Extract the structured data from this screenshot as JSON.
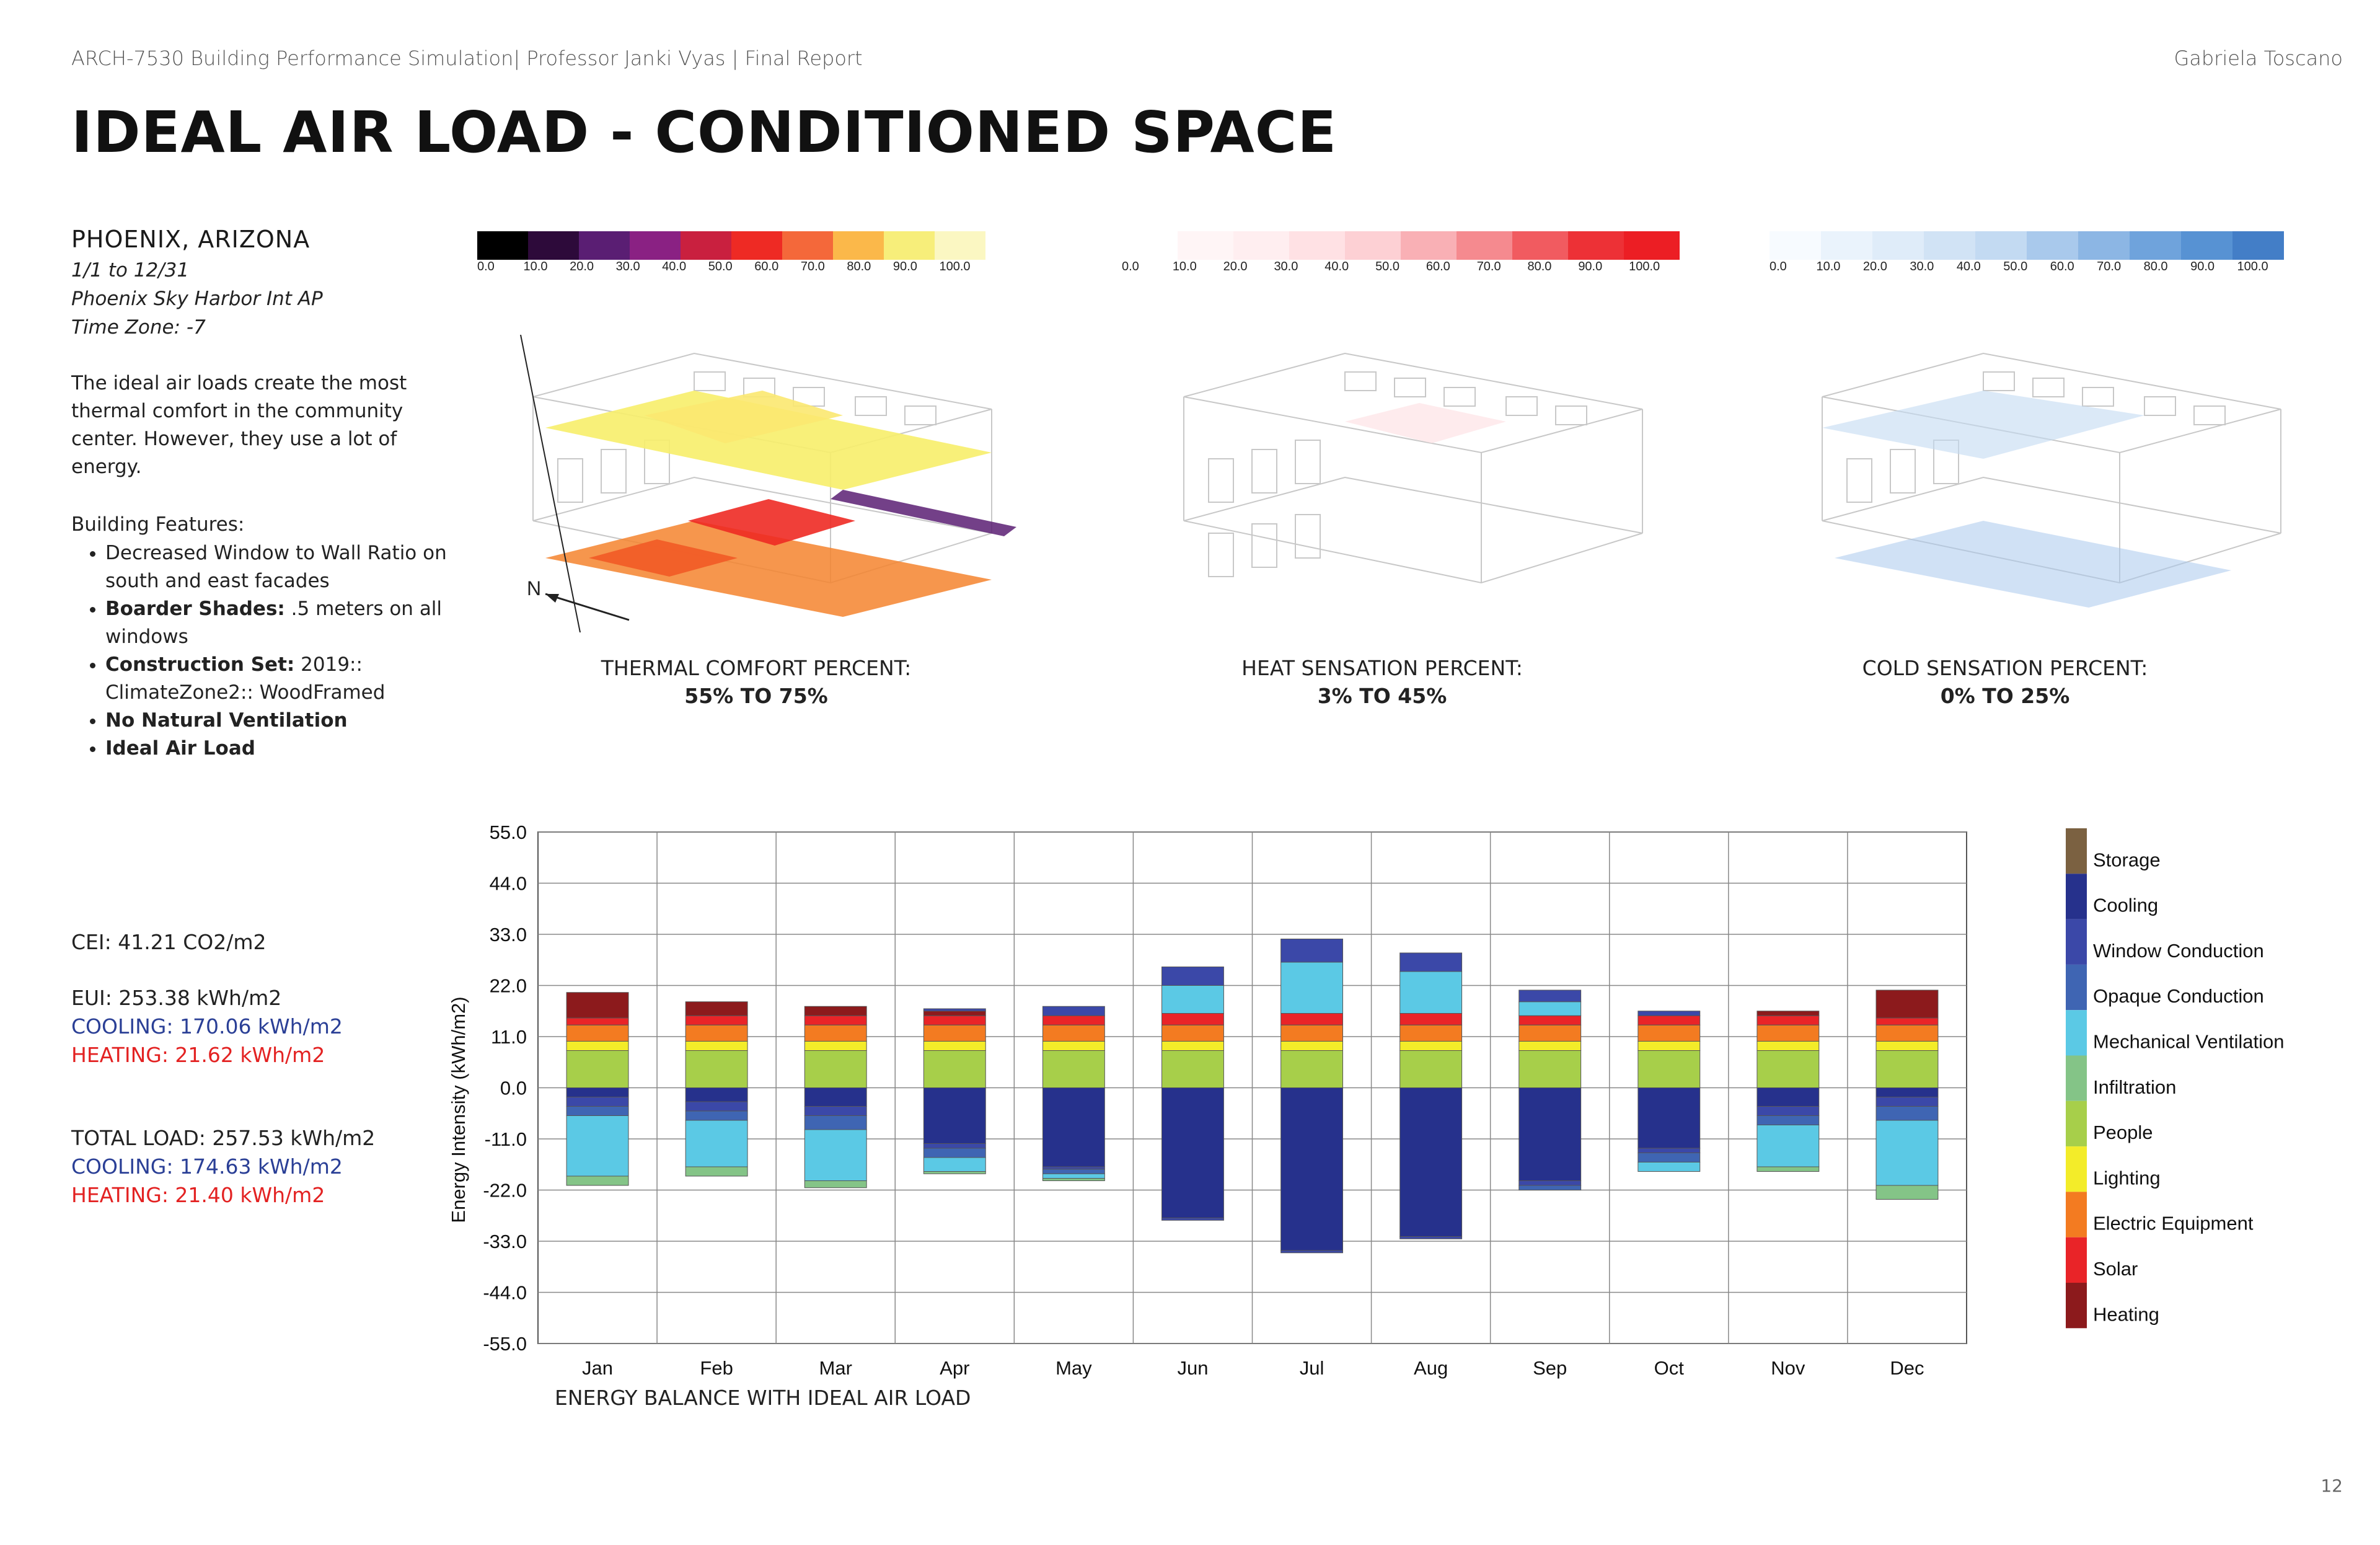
{
  "header": {
    "course": "ARCH-7530 Building Performance Simulation| Professor Janki Vyas | Final Report",
    "author": "Gabriela Toscano"
  },
  "title": "IDEAL AIR LOAD - CONDITIONED SPACE",
  "location": {
    "name": "PHOENIX, ARIZONA",
    "dates": "1/1 to 12/31",
    "station": "Phoenix Sky Harbor Int AP",
    "timezone": "Time Zone: -7"
  },
  "description": "The ideal air loads create the most thermal comfort in the community center. However, they use a lot of energy.",
  "features": {
    "heading": "Building Features:",
    "items": [
      {
        "bold": "",
        "text": "Decreased Window to Wall Ratio on south and east facades"
      },
      {
        "bold": "Boarder Shades:",
        "text": " .5 meters on all windows"
      },
      {
        "bold": "Construction Set:",
        "text": " 2019:: ClimateZone2:: WoodFramed"
      },
      {
        "bold": "No Natural Ventilation",
        "text": ""
      },
      {
        "bold": "Ideal Air Load",
        "text": ""
      }
    ]
  },
  "stats": {
    "cei": "CEI: 41.21 CO2/m2",
    "eui": "EUI: 253.38 kWh/m2",
    "eui_cooling": "COOLING: 170.06 kWh/m2",
    "eui_heating": "HEATING: 21.62 kWh/m2",
    "total": "TOTAL LOAD: 257.53 kWh/m2",
    "total_cooling": "COOLING: 174.63 kWh/m2",
    "total_heating": "HEATING: 21.40 kWh/m2"
  },
  "scales": {
    "ticks": [
      "0.0",
      "10.0",
      "20.0",
      "30.0",
      "40.0",
      "50.0",
      "60.0",
      "70.0",
      "80.0",
      "90.0",
      "100.0"
    ],
    "thermal_colors": [
      "#000000",
      "#2d0a3a",
      "#5a1e73",
      "#8a2183",
      "#c9203f",
      "#ee2a24",
      "#f4683a",
      "#fbb84a",
      "#f7ee7a",
      "#fbf7c2"
    ],
    "heat_colors": [
      "#ffffff",
      "#fff5f6",
      "#ffeef0",
      "#ffe1e4",
      "#fdd0d4",
      "#f9b0b5",
      "#f58a8f",
      "#f15b60",
      "#ed3136",
      "#ec1e24"
    ],
    "cold_colors": [
      "#f7fbff",
      "#eaf3fc",
      "#dfecf9",
      "#d1e3f5",
      "#c3daf2",
      "#a9c9ec",
      "#8cb6e4",
      "#6fa3dc",
      "#5792d3",
      "#437ec7"
    ]
  },
  "plans": [
    {
      "label": "THERMAL COMFORT PERCENT:",
      "range": "55% TO 75%"
    },
    {
      "label": "HEAT SENSATION PERCENT:",
      "range": "3% TO 45%"
    },
    {
      "label": "COLD SENSATION  PERCENT:",
      "range": "0% TO 25%"
    }
  ],
  "north_label": "N",
  "chart_caption": "ENERGY BALANCE WITH IDEAL AIR LOAD",
  "page_number": "12",
  "chart_data": {
    "type": "bar",
    "stacked": true,
    "categories": [
      "Jan",
      "Feb",
      "Mar",
      "Apr",
      "May",
      "Jun",
      "Jul",
      "Aug",
      "Sep",
      "Oct",
      "Nov",
      "Dec"
    ],
    "ylabel": "Energy Intensity (kWh/m2)",
    "ylim": [
      -55,
      55
    ],
    "yticks": [
      "55.0",
      "44.0",
      "33.0",
      "22.0",
      "11.0",
      "0.0",
      "-11.0",
      "-22.0",
      "-33.0",
      "-44.0",
      "-55.0"
    ],
    "grid": true,
    "legend_position": "right",
    "series": [
      {
        "name": "Storage",
        "color": "#7b6141",
        "values": [
          0,
          0,
          0,
          0,
          0,
          0,
          0,
          0,
          0,
          0,
          0,
          0
        ]
      },
      {
        "name": "Cooling",
        "color": "#26318c",
        "values": [
          -2,
          -3,
          -4,
          -12,
          -17,
          -28,
          -35,
          -32,
          -20,
          -13,
          -4,
          -2
        ]
      },
      {
        "name": "Window Conduction",
        "color": "#3b48a8",
        "values": [
          -2,
          -2,
          -2,
          -1,
          -0.5,
          -0.5,
          -0.5,
          -0.5,
          -1,
          -1,
          -2,
          -2
        ]
      },
      {
        "name": "Opaque Conduction",
        "color": "#3f65b3",
        "values": [
          -2,
          -2,
          -3,
          -2,
          -1,
          0,
          0,
          0,
          -1,
          -2,
          -2,
          -3
        ]
      },
      {
        "name": "Mechanical Ventilation",
        "color": "#5bc9e5",
        "values": [
          -13,
          -10,
          -11,
          -3,
          -1,
          0,
          0,
          0,
          0,
          -2,
          -9,
          -14
        ]
      },
      {
        "name": "Infiltration",
        "color": "#84c487",
        "values": [
          -2,
          -2,
          -1.5,
          -0.5,
          -0.5,
          0,
          0,
          0,
          0,
          0,
          -1,
          -3
        ]
      },
      {
        "name": "People",
        "color": "#a7cf4a",
        "values": [
          8,
          8,
          8,
          8,
          8,
          8,
          8,
          8,
          8,
          8,
          8,
          8
        ]
      },
      {
        "name": "Lighting",
        "color": "#f3ec29",
        "values": [
          2,
          2,
          2,
          2,
          2,
          2,
          2,
          2,
          2,
          2,
          2,
          2
        ]
      },
      {
        "name": "Electric Equipment",
        "color": "#f37b21",
        "values": [
          3.5,
          3.5,
          3.5,
          3.5,
          3.5,
          3.5,
          3.5,
          3.5,
          3.5,
          3.5,
          3.5,
          3.5
        ]
      },
      {
        "name": "Solar",
        "color": "#e92428",
        "values": [
          1.5,
          2,
          2,
          2,
          2,
          2.5,
          2.5,
          2.5,
          2,
          2,
          2,
          1.5
        ]
      },
      {
        "name": "Heating",
        "color": "#8c1a1c",
        "values": [
          5.5,
          3,
          2,
          1,
          0,
          0,
          0,
          0,
          0,
          0,
          1,
          6
        ]
      },
      {
        "name": "Mechanical Ventilation (gain)",
        "color": "#5bc9e5",
        "values": [
          0,
          0,
          0,
          0,
          0,
          6,
          11,
          9,
          3,
          0,
          0,
          0
        ]
      },
      {
        "name": "Cooling (gain)",
        "color": "#3b48a8",
        "values": [
          0,
          0,
          0,
          0.5,
          2,
          4,
          5,
          4,
          2.5,
          1,
          0,
          0
        ]
      }
    ]
  }
}
